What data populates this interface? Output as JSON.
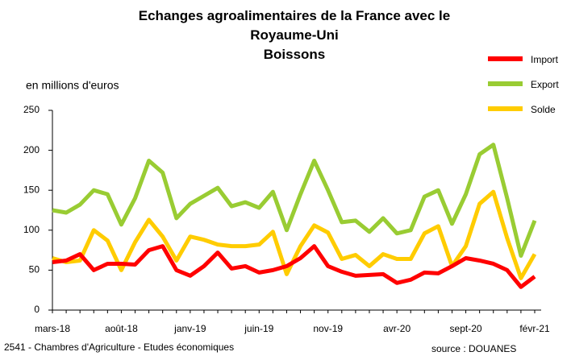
{
  "chart_data": {
    "type": "line",
    "title": "Echanges agroalimentaires de la France avec le Royaume-Uni",
    "subtitle": "Boissons",
    "y_label": "en millions d'euros",
    "footnote": "2541 - Chambres d'Agriculture - Etudes économiques",
    "source": "source : DOUANES",
    "categories": [
      "mars-18",
      null,
      null,
      null,
      null,
      "août-18",
      null,
      null,
      null,
      null,
      "janv-19",
      null,
      null,
      null,
      null,
      "juin-19",
      null,
      null,
      null,
      null,
      "nov-19",
      null,
      null,
      null,
      null,
      "avr-20",
      null,
      null,
      null,
      null,
      "sept-20",
      null,
      null,
      null,
      null,
      "févr-21"
    ],
    "series": [
      {
        "name": "Import",
        "color": "#ff0000",
        "values": [
          60,
          62,
          70,
          50,
          58,
          58,
          57,
          75,
          80,
          50,
          43,
          55,
          72,
          52,
          55,
          47,
          50,
          55,
          65,
          80,
          55,
          48,
          43,
          44,
          45,
          34,
          38,
          47,
          46,
          55,
          65,
          62,
          58,
          50,
          29,
          42
        ]
      },
      {
        "name": "Export",
        "color": "#99cc33",
        "values": [
          125,
          122,
          132,
          150,
          145,
          107,
          140,
          187,
          172,
          115,
          133,
          143,
          153,
          130,
          135,
          128,
          148,
          100,
          145,
          187,
          150,
          110,
          112,
          98,
          115,
          96,
          100,
          142,
          150,
          108,
          145,
          195,
          207,
          140,
          68,
          112
        ]
      },
      {
        "name": "Solde",
        "color": "#ffcc00",
        "values": [
          65,
          60,
          62,
          100,
          87,
          50,
          85,
          113,
          92,
          62,
          92,
          88,
          82,
          80,
          80,
          82,
          98,
          45,
          80,
          106,
          97,
          64,
          69,
          55,
          70,
          64,
          64,
          96,
          105,
          55,
          80,
          133,
          148,
          90,
          40,
          70
        ]
      }
    ],
    "ylim": [
      0,
      250
    ],
    "yticks": [
      0,
      50,
      100,
      150,
      200,
      250
    ],
    "grid": false,
    "legend": "top-right"
  }
}
